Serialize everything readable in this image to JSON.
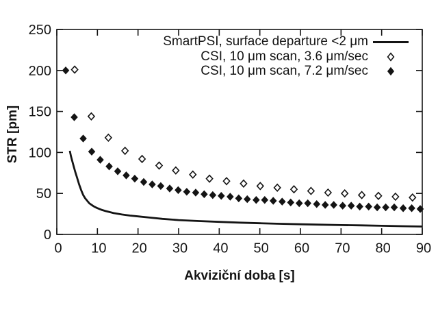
{
  "colors": {
    "ink": "#141414",
    "background": "#ffffff"
  },
  "chart_data": {
    "type": "line+scatter",
    "title": "",
    "xlabel": "Akviziční doba [s]",
    "ylabel": "STR [pm]",
    "xlim": [
      0,
      90
    ],
    "ylim": [
      0,
      250
    ],
    "xticks": [
      0,
      10,
      20,
      30,
      40,
      50,
      60,
      70,
      80,
      90
    ],
    "yticks": [
      0,
      50,
      100,
      150,
      200,
      250
    ],
    "grid": false,
    "legend_position": "top-right-inside",
    "series": [
      {
        "label": "SmartPSI, surface departure <2 μm",
        "type": "line",
        "marker": "solid-line",
        "color": "#141414",
        "points": [
          [
            3.2,
            102
          ],
          [
            3.5,
            95
          ],
          [
            4,
            86
          ],
          [
            4.5,
            77
          ],
          [
            5,
            69
          ],
          [
            5.5,
            61
          ],
          [
            6,
            54
          ],
          [
            6.5,
            48
          ],
          [
            7,
            44
          ],
          [
            7.5,
            41
          ],
          [
            8,
            38
          ],
          [
            9,
            34.5
          ],
          [
            10,
            32
          ],
          [
            11,
            30
          ],
          [
            12,
            28.5
          ],
          [
            14,
            26
          ],
          [
            16,
            24.3
          ],
          [
            18,
            23
          ],
          [
            20,
            22
          ],
          [
            23,
            20.5
          ],
          [
            26,
            19
          ],
          [
            30,
            17.5
          ],
          [
            35,
            16.3
          ],
          [
            40,
            15.3
          ],
          [
            45,
            14.4
          ],
          [
            50,
            13.6
          ],
          [
            55,
            13
          ],
          [
            60,
            12.4
          ],
          [
            65,
            11.9
          ],
          [
            70,
            11.4
          ],
          [
            75,
            11
          ],
          [
            80,
            10.5
          ],
          [
            85,
            10
          ],
          [
            90,
            9.6
          ]
        ]
      },
      {
        "label": "CSI, 10 μm scan, 3.6 μm/sec",
        "type": "scatter",
        "marker": "diamond-open",
        "color": "#141414",
        "points": [
          [
            4.4,
            201
          ],
          [
            8.5,
            144
          ],
          [
            12.7,
            118
          ],
          [
            16.8,
            102
          ],
          [
            21,
            92
          ],
          [
            25.2,
            84
          ],
          [
            29.3,
            78
          ],
          [
            33.5,
            73
          ],
          [
            37.6,
            68
          ],
          [
            41.8,
            65
          ],
          [
            46,
            62
          ],
          [
            50.1,
            59
          ],
          [
            54.3,
            57
          ],
          [
            58.4,
            55
          ],
          [
            62.6,
            53
          ],
          [
            66.8,
            51
          ],
          [
            70.9,
            50
          ],
          [
            75.1,
            48
          ],
          [
            79.2,
            47
          ],
          [
            83.4,
            46
          ],
          [
            87.6,
            45
          ]
        ]
      },
      {
        "label": "CSI, 10 μm scan, 7.2 μm/sec",
        "type": "scatter",
        "marker": "diamond-filled",
        "color": "#141414",
        "points": [
          [
            2.2,
            200
          ],
          [
            4.3,
            143
          ],
          [
            6.5,
            117
          ],
          [
            8.6,
            101
          ],
          [
            10.7,
            91
          ],
          [
            12.9,
            83
          ],
          [
            15,
            77
          ],
          [
            17.1,
            72
          ],
          [
            19.2,
            68
          ],
          [
            21.4,
            64
          ],
          [
            23.5,
            61
          ],
          [
            25.6,
            59
          ],
          [
            27.8,
            56
          ],
          [
            29.9,
            54
          ],
          [
            32,
            52
          ],
          [
            34.2,
            51
          ],
          [
            36.3,
            49
          ],
          [
            38.4,
            48
          ],
          [
            40.5,
            47
          ],
          [
            42.7,
            46
          ],
          [
            44.8,
            44
          ],
          [
            46.9,
            43
          ],
          [
            49.1,
            42
          ],
          [
            51.2,
            42
          ],
          [
            53.3,
            41
          ],
          [
            55.5,
            40
          ],
          [
            57.6,
            39
          ],
          [
            59.7,
            38
          ],
          [
            61.8,
            38
          ],
          [
            64,
            37
          ],
          [
            66.1,
            36
          ],
          [
            68.2,
            36
          ],
          [
            70.4,
            35
          ],
          [
            72.5,
            35
          ],
          [
            74.6,
            34
          ],
          [
            76.8,
            34
          ],
          [
            78.9,
            33
          ],
          [
            81,
            33
          ],
          [
            83.1,
            33
          ],
          [
            85.3,
            32
          ],
          [
            87.4,
            32
          ],
          [
            89.5,
            31
          ]
        ]
      }
    ]
  }
}
